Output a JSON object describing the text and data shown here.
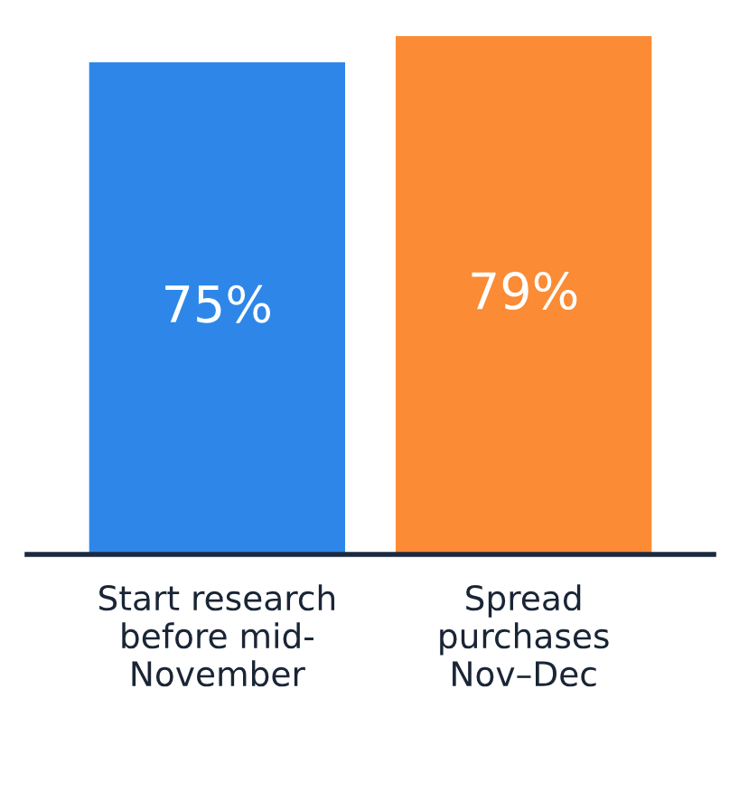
{
  "chart_data": {
    "type": "bar",
    "categories": [
      "Start research\nbefore mid-\nNovember",
      "Spread\npurchases\nNov–Dec"
    ],
    "values": [
      75,
      79
    ],
    "colors": [
      "#2e87e8",
      "#fb8b35"
    ],
    "value_labels": [
      "75%",
      "79%"
    ],
    "grid": false,
    "legend": false
  }
}
